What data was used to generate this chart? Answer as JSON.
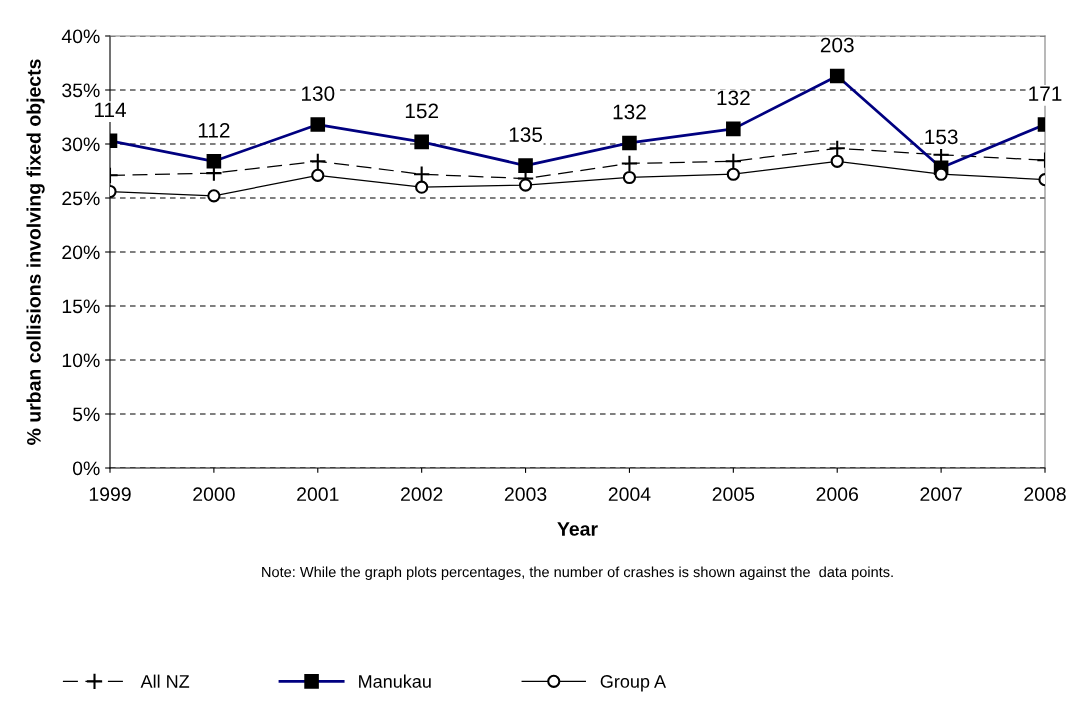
{
  "chart_data": {
    "type": "line",
    "xlabel": "Year",
    "ylabel": "% urban collisions involving fixed objects",
    "categories": [
      "1999",
      "2000",
      "2001",
      "2002",
      "2003",
      "2004",
      "2005",
      "2006",
      "2007",
      "2008"
    ],
    "series": [
      {
        "name": "All NZ",
        "color": "#000000",
        "marker": "cross",
        "line_style": "dashed",
        "values": [
          27.1,
          27.3,
          28.4,
          27.2,
          26.8,
          28.2,
          28.4,
          29.6,
          29.0,
          28.5
        ]
      },
      {
        "name": "Manukau",
        "color": "#000080",
        "marker": "square",
        "line_style": "solid",
        "values": [
          30.3,
          28.4,
          31.8,
          30.2,
          28.0,
          30.1,
          31.4,
          36.3,
          27.8,
          31.8
        ]
      },
      {
        "name": "Group A",
        "color": "#000000",
        "marker": "circle",
        "line_style": "solid",
        "values": [
          25.6,
          25.2,
          27.1,
          26.0,
          26.2,
          26.9,
          27.2,
          28.4,
          27.2,
          26.7
        ]
      }
    ],
    "ylim": [
      0,
      40
    ],
    "yticks": [
      {
        "value": 0,
        "label": "0%"
      },
      {
        "value": 5,
        "label": "5%"
      },
      {
        "value": 10,
        "label": "10%"
      },
      {
        "value": 15,
        "label": "15%"
      },
      {
        "value": 20,
        "label": "20%"
      },
      {
        "value": 25,
        "label": "25%"
      },
      {
        "value": 30,
        "label": "30%"
      },
      {
        "value": 35,
        "label": "35%"
      },
      {
        "value": 40,
        "label": "40%"
      }
    ],
    "grid": "y",
    "legend": "bottom",
    "annotations": [
      {
        "text": "114",
        "x": "1999",
        "y": 30.3
      },
      {
        "text": "112",
        "x": "2000",
        "y": 28.4
      },
      {
        "text": "130",
        "x": "2001",
        "y": 31.8
      },
      {
        "text": "152",
        "x": "2002",
        "y": 30.2
      },
      {
        "text": "135",
        "x": "2003",
        "y": 28.0
      },
      {
        "text": "132",
        "x": "2004",
        "y": 30.1
      },
      {
        "text": "132",
        "x": "2005",
        "y": 31.4
      },
      {
        "text": "203",
        "x": "2006",
        "y": 36.3
      },
      {
        "text": "153",
        "x": "2007",
        "y": 27.8
      },
      {
        "text": "171",
        "x": "2008",
        "y": 31.8
      },
      "Note: While the graph plots percentages, the number of crashes is shown against the  data points."
    ]
  }
}
